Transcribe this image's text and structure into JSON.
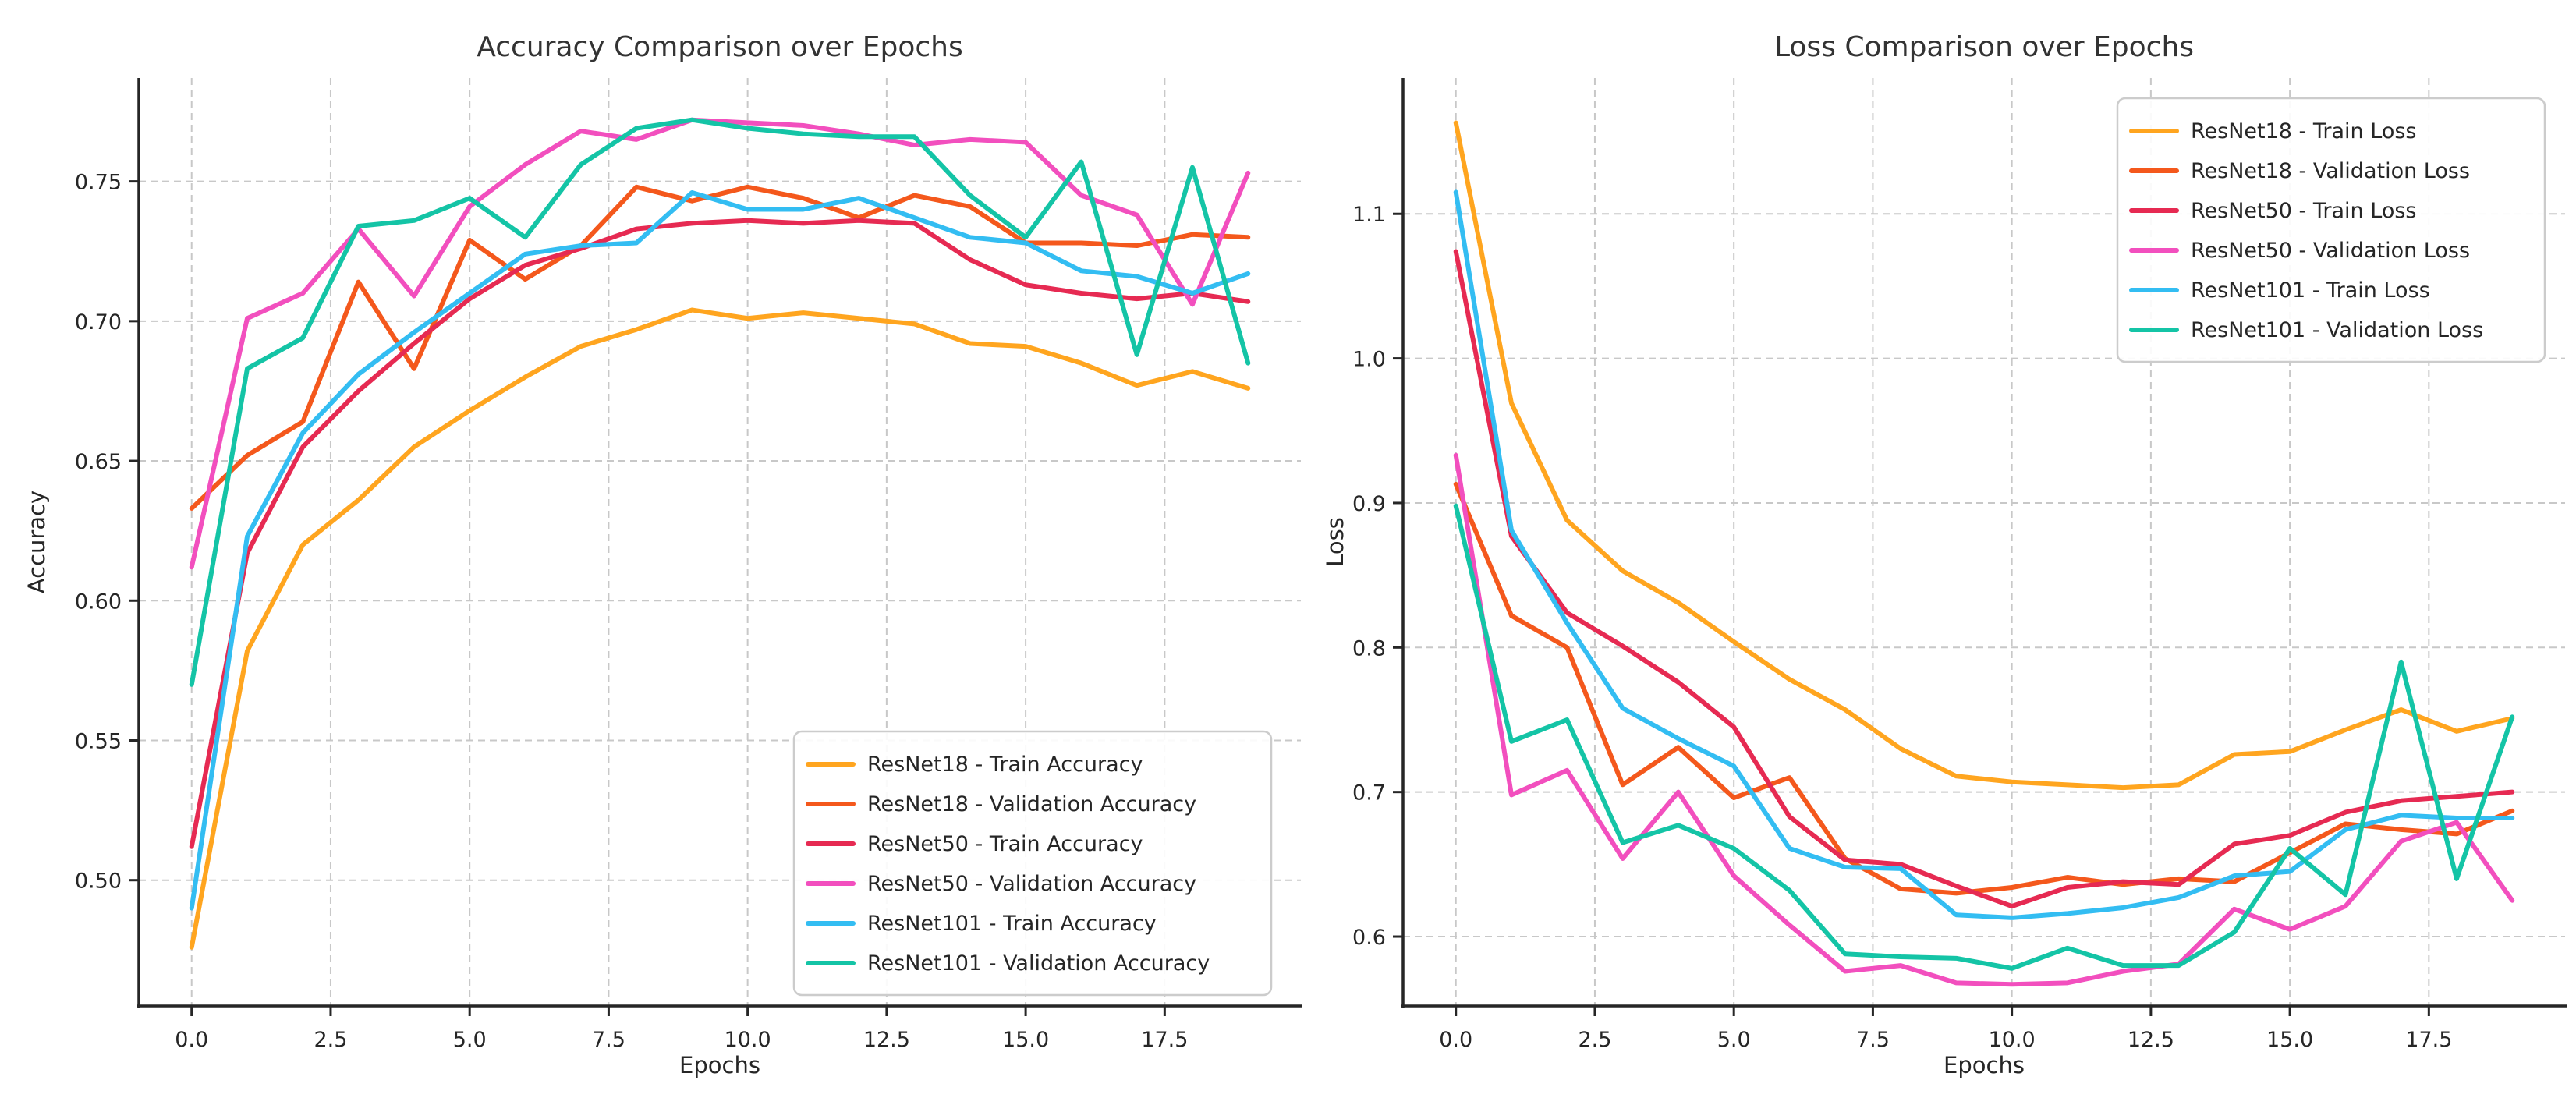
{
  "figure": {
    "background": "#ffffff",
    "grid_color": "#c8c8c8",
    "spine_color": "#262626",
    "text_color": "#262626",
    "title_color": "#333333",
    "legend_border_color": "#cccccc",
    "legend_background": "#ffffff"
  },
  "chart_data": [
    {
      "type": "line",
      "title": "Accuracy Comparison over Epochs",
      "xlabel": "Epochs",
      "ylabel": "Accuracy",
      "x": [
        0,
        1,
        2,
        3,
        4,
        5,
        6,
        7,
        8,
        9,
        10,
        11,
        12,
        13,
        14,
        15,
        16,
        17,
        18,
        19
      ],
      "xlim": [
        -0.95,
        19.95
      ],
      "ylim": [
        0.455,
        0.787
      ],
      "xticks": [
        0,
        2.5,
        5,
        7.5,
        10,
        12.5,
        15,
        17.5
      ],
      "xtick_labels": [
        "0.0",
        "2.5",
        "5.0",
        "7.5",
        "10.0",
        "12.5",
        "15.0",
        "17.5"
      ],
      "yticks": [
        0.5,
        0.55,
        0.6,
        0.65,
        0.7,
        0.75
      ],
      "ytick_labels": [
        "0.50",
        "0.55",
        "0.60",
        "0.65",
        "0.70",
        "0.75"
      ],
      "grid": true,
      "legend_position": "lower-right",
      "series": [
        {
          "name": "ResNet18 - Train Accuracy",
          "color": "#FFA51F",
          "values": [
            0.476,
            0.582,
            0.62,
            0.636,
            0.655,
            0.668,
            0.68,
            0.691,
            0.697,
            0.704,
            0.701,
            0.703,
            0.701,
            0.699,
            0.692,
            0.691,
            0.685,
            0.677,
            0.682,
            0.676
          ]
        },
        {
          "name": "ResNet18 - Validation Accuracy",
          "color": "#F4581C",
          "values": [
            0.633,
            0.652,
            0.664,
            0.714,
            0.683,
            0.729,
            0.715,
            0.727,
            0.748,
            0.743,
            0.748,
            0.744,
            0.737,
            0.745,
            0.741,
            0.728,
            0.728,
            0.727,
            0.731,
            0.73
          ]
        },
        {
          "name": "ResNet50 - Train Accuracy",
          "color": "#E62A52",
          "values": [
            0.512,
            0.617,
            0.655,
            0.675,
            0.692,
            0.708,
            0.72,
            0.726,
            0.733,
            0.735,
            0.736,
            0.735,
            0.736,
            0.735,
            0.722,
            0.713,
            0.71,
            0.708,
            0.71,
            0.707
          ]
        },
        {
          "name": "ResNet50 - Validation Accuracy",
          "color": "#F24FBE",
          "values": [
            0.612,
            0.701,
            0.71,
            0.733,
            0.709,
            0.741,
            0.756,
            0.768,
            0.765,
            0.772,
            0.771,
            0.77,
            0.767,
            0.763,
            0.765,
            0.764,
            0.745,
            0.738,
            0.706,
            0.753
          ]
        },
        {
          "name": "ResNet101 - Train Accuracy",
          "color": "#33BDF2",
          "values": [
            0.49,
            0.623,
            0.66,
            0.681,
            0.696,
            0.71,
            0.724,
            0.727,
            0.728,
            0.746,
            0.74,
            0.74,
            0.744,
            0.737,
            0.73,
            0.728,
            0.718,
            0.716,
            0.71,
            0.717
          ]
        },
        {
          "name": "ResNet101 - Validation Accuracy",
          "color": "#14C4A6",
          "values": [
            0.57,
            0.683,
            0.694,
            0.734,
            0.736,
            0.744,
            0.73,
            0.756,
            0.769,
            0.772,
            0.769,
            0.767,
            0.766,
            0.766,
            0.745,
            0.73,
            0.757,
            0.688,
            0.755,
            0.685
          ]
        }
      ]
    },
    {
      "type": "line",
      "title": "Loss Comparison over Epochs",
      "xlabel": "Epochs",
      "ylabel": "Loss",
      "x": [
        0,
        1,
        2,
        3,
        4,
        5,
        6,
        7,
        8,
        9,
        10,
        11,
        12,
        13,
        14,
        15,
        16,
        17,
        18,
        19
      ],
      "xlim": [
        -0.95,
        19.95
      ],
      "ylim": [
        0.552,
        1.194
      ],
      "xticks": [
        0,
        2.5,
        5,
        7.5,
        10,
        12.5,
        15,
        17.5
      ],
      "xtick_labels": [
        "0.0",
        "2.5",
        "5.0",
        "7.5",
        "10.0",
        "12.5",
        "15.0",
        "17.5"
      ],
      "yticks": [
        0.6,
        0.7,
        0.8,
        0.9,
        1.0,
        1.1
      ],
      "ytick_labels": [
        "0.6",
        "0.7",
        "0.8",
        "0.9",
        "1.0",
        "1.1"
      ],
      "grid": true,
      "legend_position": "upper-right",
      "series": [
        {
          "name": "ResNet18 - Train Loss",
          "color": "#FFA51F",
          "values": [
            1.163,
            0.969,
            0.888,
            0.853,
            0.831,
            0.804,
            0.778,
            0.757,
            0.73,
            0.711,
            0.707,
            0.705,
            0.703,
            0.705,
            0.726,
            0.728,
            0.743,
            0.757,
            0.742,
            0.751
          ]
        },
        {
          "name": "ResNet18 - Validation Loss",
          "color": "#F4581C",
          "values": [
            0.913,
            0.822,
            0.8,
            0.705,
            0.731,
            0.696,
            0.71,
            0.654,
            0.633,
            0.63,
            0.634,
            0.641,
            0.636,
            0.64,
            0.638,
            0.658,
            0.678,
            0.674,
            0.671,
            0.687
          ]
        },
        {
          "name": "ResNet50 - Train Loss",
          "color": "#E62A52",
          "values": [
            1.074,
            0.877,
            0.824,
            0.801,
            0.776,
            0.745,
            0.683,
            0.653,
            0.65,
            0.635,
            0.621,
            0.634,
            0.638,
            0.636,
            0.664,
            0.67,
            0.686,
            0.694,
            0.697,
            0.7
          ]
        },
        {
          "name": "ResNet50 - Validation Loss",
          "color": "#F24FBE",
          "values": [
            0.933,
            0.698,
            0.715,
            0.654,
            0.7,
            0.642,
            0.608,
            0.576,
            0.58,
            0.568,
            0.567,
            0.568,
            0.576,
            0.581,
            0.619,
            0.605,
            0.621,
            0.666,
            0.679,
            0.625
          ]
        },
        {
          "name": "ResNet101 - Train Loss",
          "color": "#33BDF2",
          "values": [
            1.115,
            0.881,
            0.817,
            0.758,
            0.737,
            0.718,
            0.661,
            0.648,
            0.647,
            0.615,
            0.613,
            0.616,
            0.62,
            0.627,
            0.642,
            0.645,
            0.674,
            0.684,
            0.682,
            0.682
          ]
        },
        {
          "name": "ResNet101 - Validation Loss",
          "color": "#14C4A6",
          "values": [
            0.898,
            0.735,
            0.75,
            0.665,
            0.677,
            0.661,
            0.632,
            0.588,
            0.586,
            0.585,
            0.578,
            0.592,
            0.58,
            0.58,
            0.603,
            0.661,
            0.629,
            0.79,
            0.64,
            0.752
          ]
        }
      ]
    }
  ]
}
